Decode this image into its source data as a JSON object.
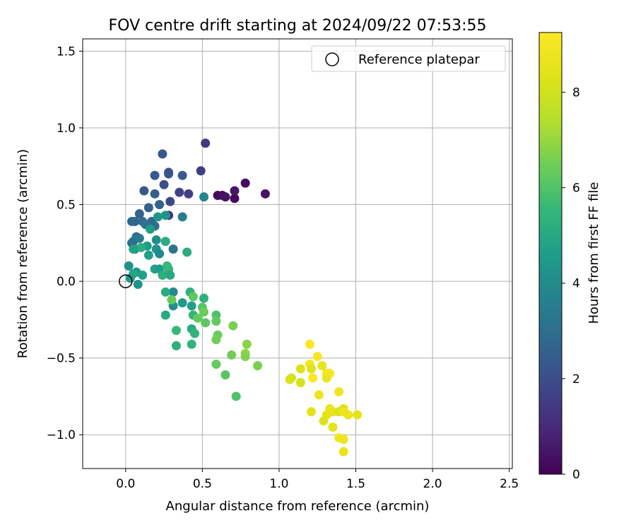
{
  "chart_data": {
    "type": "scatter",
    "title": "FOV centre drift starting at 2024/09/22 07:53:55",
    "xlabel": "Angular distance from reference (arcmin)",
    "ylabel": "Rotation from reference (arcmin)",
    "xlim": [
      -0.28,
      2.52
    ],
    "ylim": [
      -1.22,
      1.58
    ],
    "x_ticks": [
      0.0,
      0.5,
      1.0,
      1.5,
      2.0,
      2.5
    ],
    "x_tick_labels": [
      "0.0",
      "0.5",
      "1.0",
      "1.5",
      "2.0",
      "2.5"
    ],
    "y_ticks": [
      -1.0,
      -0.5,
      0.0,
      0.5,
      1.0,
      1.5
    ],
    "y_tick_labels": [
      "−1.0",
      "−0.5",
      "0.0",
      "0.5",
      "1.0",
      "1.5"
    ],
    "grid": true,
    "legend": {
      "position": "top-right",
      "entries": [
        "Reference platepar"
      ]
    },
    "reference_point": {
      "x": 0.0,
      "y": 0.0
    },
    "colorbar": {
      "label": "Hours from first FF file",
      "colormap": "viridis",
      "range": [
        0,
        9.25
      ],
      "ticks": [
        0,
        2,
        4,
        6,
        8
      ],
      "tick_labels": [
        "0",
        "2",
        "4",
        "6",
        "8"
      ]
    },
    "series": [
      {
        "points": [
          [
            0.6,
            0.56,
            0.2
          ],
          [
            0.63,
            0.56,
            0.3
          ],
          [
            0.65,
            0.55,
            0.4
          ],
          [
            0.71,
            0.54,
            0.2
          ],
          [
            0.71,
            0.59,
            0.5
          ],
          [
            0.78,
            0.64,
            0.3
          ],
          [
            0.91,
            0.57,
            0.4
          ],
          [
            0.52,
            0.9,
            1.4
          ],
          [
            0.49,
            0.72,
            1.5
          ],
          [
            0.41,
            0.57,
            1.6
          ],
          [
            0.35,
            0.58,
            1.7
          ],
          [
            0.29,
            0.52,
            1.8
          ],
          [
            0.28,
            0.43,
            1.3
          ],
          [
            0.24,
            0.83,
            2.3
          ],
          [
            0.28,
            0.7,
            2.1
          ],
          [
            0.28,
            0.71,
            2.2
          ],
          [
            0.19,
            0.69,
            2.4
          ],
          [
            0.25,
            0.63,
            2.0
          ],
          [
            0.12,
            0.59,
            2.3
          ],
          [
            0.19,
            0.57,
            2.5
          ],
          [
            0.37,
            0.69,
            2.4
          ],
          [
            0.22,
            0.5,
            2.6
          ],
          [
            0.15,
            0.48,
            2.5
          ],
          [
            0.09,
            0.44,
            2.6
          ],
          [
            0.06,
            0.39,
            2.7
          ],
          [
            0.04,
            0.39,
            2.8
          ],
          [
            0.11,
            0.39,
            2.9
          ],
          [
            0.17,
            0.39,
            2.8
          ],
          [
            0.19,
            0.36,
            3.0
          ],
          [
            0.13,
            0.37,
            3.1
          ],
          [
            0.07,
            0.29,
            3.0
          ],
          [
            0.05,
            0.26,
            3.2
          ],
          [
            0.09,
            0.28,
            3.4
          ],
          [
            0.04,
            0.25,
            3.0
          ],
          [
            0.06,
            0.21,
            2.9
          ],
          [
            0.31,
            0.21,
            3.2
          ],
          [
            0.37,
            0.42,
            3.6
          ],
          [
            0.51,
            0.55,
            3.8
          ],
          [
            0.26,
            0.43,
            4.3
          ],
          [
            0.21,
            0.42,
            4.4
          ],
          [
            0.16,
            0.34,
            4.6
          ],
          [
            0.2,
            0.27,
            4.1
          ],
          [
            0.14,
            0.23,
            4.5
          ],
          [
            0.2,
            0.21,
            4.3
          ],
          [
            0.15,
            0.17,
            4.7
          ],
          [
            0.22,
            0.18,
            3.9
          ],
          [
            0.1,
            0.22,
            5.2
          ],
          [
            0.05,
            0.21,
            4.8
          ],
          [
            0.02,
            0.1,
            4.2
          ],
          [
            0.07,
            0.06,
            4.4
          ],
          [
            0.05,
            0.05,
            4.9
          ],
          [
            0.11,
            0.04,
            4.7
          ],
          [
            0.03,
            0.02,
            4.5
          ],
          [
            0.08,
            -0.02,
            4.3
          ],
          [
            0.19,
            0.08,
            4.8
          ],
          [
            0.22,
            0.08,
            4.5
          ],
          [
            0.26,
            0.26,
            5.1
          ],
          [
            0.24,
            0.04,
            5.2
          ],
          [
            0.28,
            0.08,
            5.4
          ],
          [
            0.27,
            0.1,
            5.6
          ],
          [
            0.29,
            0.04,
            5.0
          ],
          [
            0.4,
            0.19,
            5.1
          ],
          [
            0.31,
            -0.07,
            3.9
          ],
          [
            0.26,
            -0.07,
            5.1
          ],
          [
            0.31,
            -0.16,
            4.2
          ],
          [
            0.37,
            -0.14,
            4.5
          ],
          [
            0.43,
            -0.16,
            4.7
          ],
          [
            0.26,
            -0.22,
            5.0
          ],
          [
            0.42,
            -0.07,
            5.3
          ],
          [
            0.44,
            -0.1,
            6.2
          ],
          [
            0.3,
            -0.12,
            6.3
          ],
          [
            0.44,
            -0.22,
            5.5
          ],
          [
            0.47,
            -0.24,
            6.3
          ],
          [
            0.43,
            -0.31,
            5.1
          ],
          [
            0.45,
            -0.34,
            5.4
          ],
          [
            0.33,
            -0.32,
            5.6
          ],
          [
            0.33,
            -0.42,
            5.3
          ],
          [
            0.43,
            -0.41,
            5.4
          ],
          [
            0.51,
            -0.11,
            5.3
          ],
          [
            0.5,
            -0.17,
            6.1
          ],
          [
            0.51,
            -0.2,
            6.4
          ],
          [
            0.52,
            -0.27,
            6.2
          ],
          [
            0.59,
            -0.22,
            6.0
          ],
          [
            0.59,
            -0.26,
            6.3
          ],
          [
            0.6,
            -0.35,
            6.4
          ],
          [
            0.59,
            -0.38,
            6.5
          ],
          [
            0.7,
            -0.29,
            6.6
          ],
          [
            0.79,
            -0.41,
            6.8
          ],
          [
            0.78,
            -0.47,
            6.9
          ],
          [
            0.78,
            -0.49,
            6.7
          ],
          [
            0.69,
            -0.48,
            6.5
          ],
          [
            0.59,
            -0.54,
            6.3
          ],
          [
            0.65,
            -0.61,
            6.1
          ],
          [
            0.72,
            -0.75,
            6.0
          ],
          [
            0.86,
            -0.55,
            6.6
          ],
          [
            1.2,
            -0.41,
            9.2
          ],
          [
            1.25,
            -0.49,
            9.1
          ],
          [
            1.2,
            -0.54,
            9.0
          ],
          [
            1.21,
            -0.57,
            8.4
          ],
          [
            1.28,
            -0.55,
            8.6
          ],
          [
            1.31,
            -0.6,
            9.0
          ],
          [
            1.33,
            -0.6,
            9.1
          ],
          [
            1.22,
            -0.63,
            9.2
          ],
          [
            1.31,
            -0.63,
            8.7
          ],
          [
            1.14,
            -0.57,
            8.3
          ],
          [
            1.08,
            -0.63,
            8.0
          ],
          [
            1.07,
            -0.64,
            8.2
          ],
          [
            1.14,
            -0.66,
            8.1
          ],
          [
            1.26,
            -0.74,
            8.8
          ],
          [
            1.39,
            -0.72,
            8.9
          ],
          [
            1.21,
            -0.85,
            8.4
          ],
          [
            1.31,
            -0.87,
            8.5
          ],
          [
            1.33,
            -0.83,
            8.7
          ],
          [
            1.35,
            -0.85,
            8.6
          ],
          [
            1.29,
            -0.91,
            8.3
          ],
          [
            1.39,
            -0.85,
            8.2
          ],
          [
            1.42,
            -0.83,
            8.3
          ],
          [
            1.42,
            -0.85,
            8.8
          ],
          [
            1.45,
            -0.87,
            8.7
          ],
          [
            1.51,
            -0.87,
            8.6
          ],
          [
            1.35,
            -0.95,
            8.5
          ],
          [
            1.39,
            -1.02,
            8.9
          ],
          [
            1.42,
            -1.03,
            8.8
          ],
          [
            1.42,
            -1.11,
            8.6
          ]
        ]
      }
    ]
  }
}
